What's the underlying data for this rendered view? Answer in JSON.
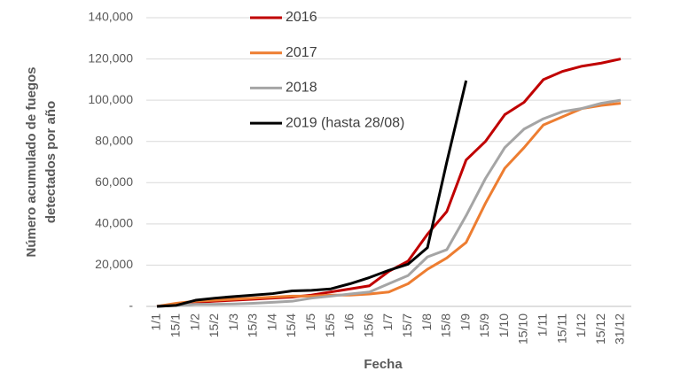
{
  "chart_data": {
    "type": "line",
    "xlabel": "Fecha",
    "ylabel": [
      "Número acumulado de fuegos",
      "detectados por año"
    ],
    "categories": [
      "1/1",
      "15/1",
      "1/2",
      "15/2",
      "1/3",
      "15/3",
      "1/4",
      "15/4",
      "1/5",
      "15/5",
      "1/6",
      "15/6",
      "1/7",
      "15/7",
      "1/8",
      "15/8",
      "1/9",
      "15/9",
      "1/10",
      "15/10",
      "1/11",
      "15/11",
      "1/12",
      "15/12",
      "31/12"
    ],
    "series": [
      {
        "name": "2016",
        "color": "#c00000",
        "values": [
          0,
          1000,
          2000,
          2500,
          3000,
          3500,
          4000,
          4500,
          5500,
          7000,
          8500,
          10000,
          17000,
          22000,
          35000,
          46000,
          71000,
          80000,
          93000,
          99000,
          110000,
          114000,
          116500,
          118000,
          120000
        ]
      },
      {
        "name": "2017",
        "color": "#ed7d31",
        "values": [
          0,
          1500,
          2500,
          3000,
          3500,
          4000,
          4500,
          5000,
          5000,
          5500,
          5500,
          6000,
          7000,
          11000,
          18000,
          23500,
          31000,
          50000,
          67000,
          77000,
          88000,
          92000,
          96000,
          97500,
          98500
        ]
      },
      {
        "name": "2018",
        "color": "#a5a5a5",
        "values": [
          0,
          500,
          1000,
          1000,
          1200,
          1500,
          2000,
          2500,
          4000,
          5000,
          6000,
          7000,
          11000,
          15000,
          24000,
          27500,
          44000,
          62000,
          77000,
          86000,
          91000,
          94500,
          96000,
          98500,
          100000
        ]
      },
      {
        "name": "2019 (hasta 28/08)",
        "color": "#000000",
        "values": [
          0,
          500,
          3000,
          4000,
          4800,
          5500,
          6200,
          7500,
          7800,
          8500,
          11000,
          14000,
          17500,
          20500,
          28500,
          70000,
          109500,
          null,
          null,
          null,
          null,
          null,
          null,
          null,
          null
        ]
      }
    ],
    "ylim": [
      0,
      140000
    ],
    "yticks": [
      {
        "value": 0,
        "label": "-"
      },
      {
        "value": 20000,
        "label": "20,000"
      },
      {
        "value": 40000,
        "label": "40,000"
      },
      {
        "value": 60000,
        "label": "60,000"
      },
      {
        "value": 80000,
        "label": "80,000"
      },
      {
        "value": 100000,
        "label": "100,000"
      },
      {
        "value": 120000,
        "label": "120,000"
      },
      {
        "value": 140000,
        "label": "140,000"
      }
    ],
    "grid": true
  }
}
